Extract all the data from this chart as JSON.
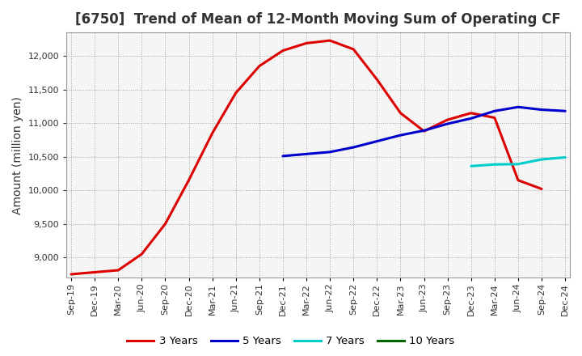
{
  "title": "[6750]  Trend of Mean of 12-Month Moving Sum of Operating CF",
  "ylabel": "Amount (million yen)",
  "ylim": [
    8700,
    12350
  ],
  "yticks": [
    9000,
    9500,
    10000,
    10500,
    11000,
    11500,
    12000
  ],
  "background_color": "#ffffff",
  "plot_bg_color": "#f5f5f5",
  "grid_color": "#999999",
  "title_color": "#333333",
  "tick_color": "#333333",
  "line_3y": {
    "label": "3 Years",
    "color": "#dd0000",
    "dates": [
      "Sep-19",
      "Dec-19",
      "Mar-20",
      "Jun-20",
      "Sep-20",
      "Dec-20",
      "Mar-21",
      "Jun-21",
      "Sep-21",
      "Dec-21",
      "Mar-22",
      "Jun-22",
      "Sep-22",
      "Dec-22",
      "Mar-23",
      "Jun-23",
      "Sep-23",
      "Dec-23",
      "Mar-24",
      "Jun-24",
      "Sep-24"
    ],
    "values": [
      8750,
      8780,
      8810,
      9050,
      9500,
      10150,
      10850,
      11450,
      11850,
      12080,
      12190,
      12230,
      12100,
      11650,
      11150,
      10880,
      11050,
      11150,
      11080,
      10150,
      10020
    ]
  },
  "line_5y": {
    "label": "5 Years",
    "color": "#0000cc",
    "dates": [
      "Dec-21",
      "Mar-22",
      "Jun-22",
      "Sep-22",
      "Dec-22",
      "Mar-23",
      "Jun-23",
      "Sep-23",
      "Dec-23",
      "Mar-24",
      "Jun-24",
      "Sep-24",
      "Dec-24"
    ],
    "values": [
      10510,
      10540,
      10570,
      10640,
      10730,
      10820,
      10890,
      10990,
      11070,
      11180,
      11240,
      11200,
      11180
    ]
  },
  "line_7y": {
    "label": "7 Years",
    "color": "#00cccc",
    "dates": [
      "Dec-23",
      "Mar-24",
      "Jun-24",
      "Sep-24",
      "Dec-24"
    ],
    "values": [
      10360,
      10385,
      10390,
      10460,
      10490
    ]
  },
  "line_10y": {
    "label": "10 Years",
    "color": "#006600",
    "dates": [],
    "values": []
  },
  "all_dates": [
    "Sep-19",
    "Dec-19",
    "Mar-20",
    "Jun-20",
    "Sep-20",
    "Dec-20",
    "Mar-21",
    "Jun-21",
    "Sep-21",
    "Dec-21",
    "Mar-22",
    "Jun-22",
    "Sep-22",
    "Dec-22",
    "Mar-23",
    "Jun-23",
    "Sep-23",
    "Dec-23",
    "Mar-24",
    "Jun-24",
    "Sep-24",
    "Dec-24"
  ],
  "title_fontsize": 12,
  "ylabel_fontsize": 10,
  "tick_fontsize": 8
}
